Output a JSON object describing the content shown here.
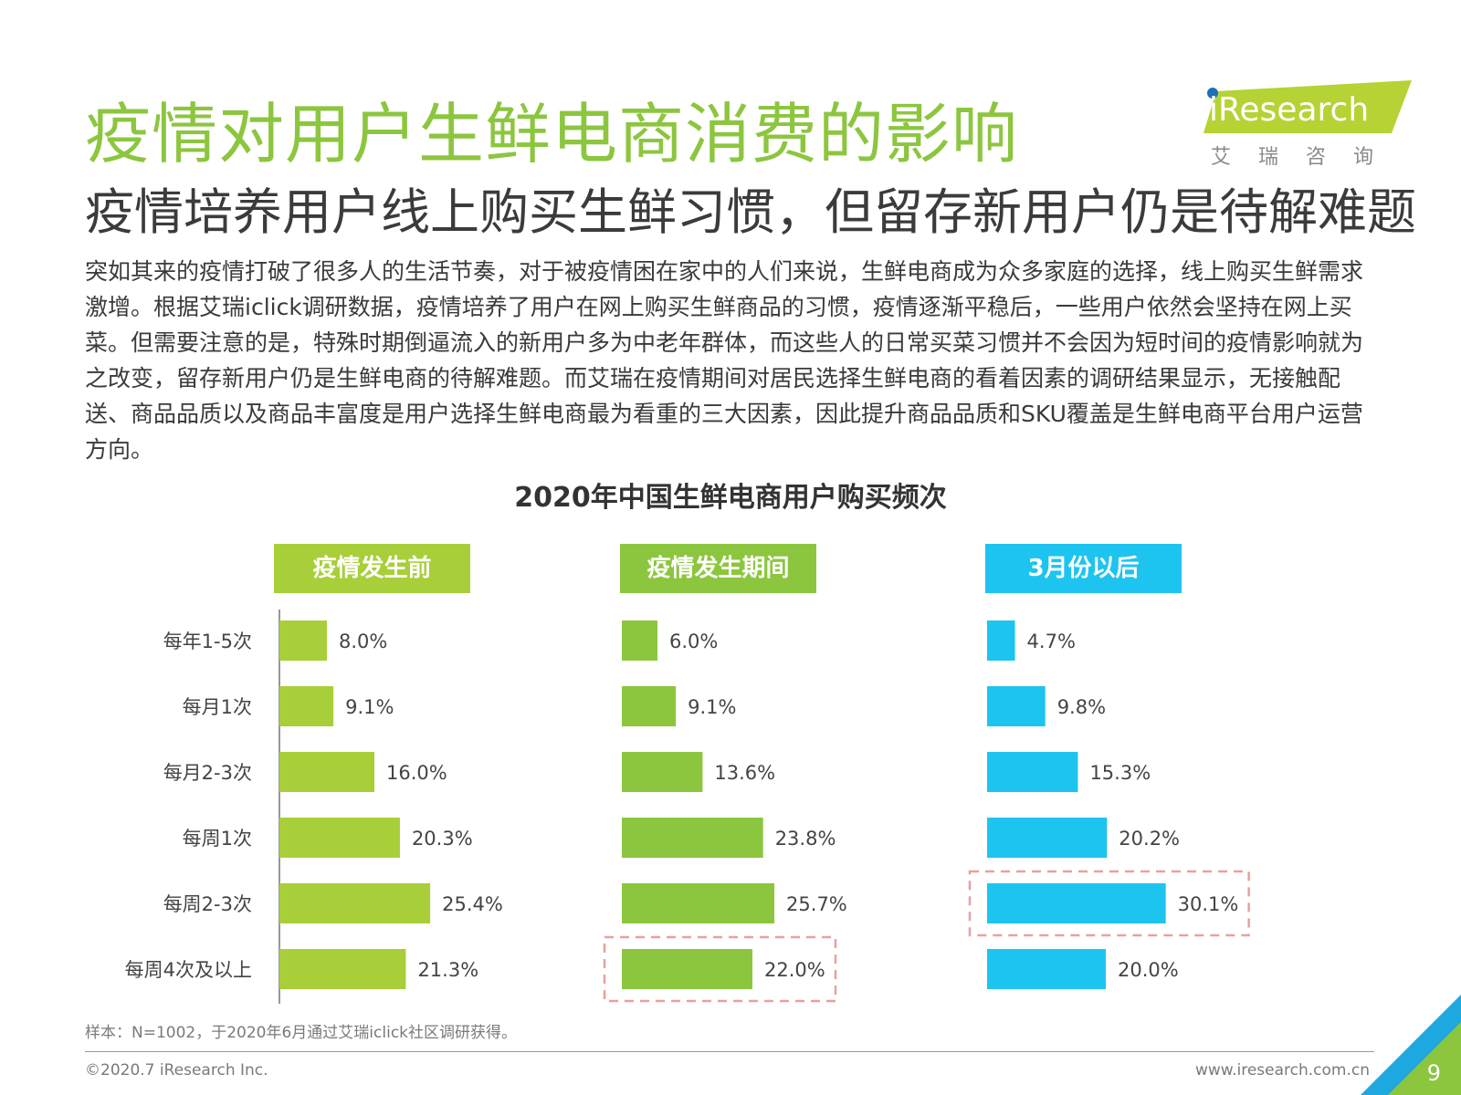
{
  "header": {
    "title": "疫情对用户生鲜电商消费的影响",
    "subtitle": "疫情培养用户线上购买生鲜习惯，但留存新用户仍是待解难题"
  },
  "logo": {
    "brand": "iResearch",
    "cn": "艾瑞咨询"
  },
  "body_text": "突如其来的疫情打破了很多人的生活节奏，对于被疫情困在家中的人们来说，生鲜电商成为众多家庭的选择，线上购买生鲜需求激增。根据艾瑞iclick调研数据，疫情培养了用户在网上购买生鲜商品的习惯，疫情逐渐平稳后，一些用户依然会坚持在网上买菜。但需要注意的是，特殊时期倒逼流入的新用户多为中老年群体，而这些人的日常买菜习惯并不会因为短时间的疫情影响就为之改变，留存新用户仍是生鲜电商的待解难题。而艾瑞在疫情期间对居民选择生鲜电商的看着因素的调研结果显示，无接触配送、商品品质以及商品丰富度是用户选择生鲜电商最为看重的三大因素，因此提升商品品质和SKU覆盖是生鲜电商平台用户运营方向。",
  "chart_data": {
    "type": "bar",
    "orientation": "horizontal",
    "title": "2020年中国生鲜电商用户购买频次",
    "categories": [
      "每年1-5次",
      "每月1次",
      "每月2-3次",
      "每周1次",
      "每周2-3次",
      "每周4次及以上"
    ],
    "series": [
      {
        "name": "疫情发生前",
        "color": "#a8cf39",
        "values": [
          8.0,
          9.1,
          16.0,
          20.3,
          25.4,
          21.3
        ],
        "labels": [
          "8.0%",
          "9.1%",
          "16.0%",
          "20.3%",
          "25.4%",
          "21.3%"
        ],
        "highlight_index": null
      },
      {
        "name": "疫情发生期间",
        "color": "#8cc63f",
        "values": [
          6.0,
          9.1,
          13.6,
          23.8,
          25.7,
          22.0
        ],
        "labels": [
          "6.0%",
          "9.1%",
          "13.6%",
          "23.8%",
          "25.7%",
          "22.0%"
        ],
        "highlight_index": 5
      },
      {
        "name": "3月份以后",
        "color": "#1ec4f0",
        "values": [
          4.7,
          9.8,
          15.3,
          20.2,
          30.1,
          20.0
        ],
        "labels": [
          "4.7%",
          "9.8%",
          "15.3%",
          "20.2%",
          "30.1%",
          "20.0%"
        ],
        "highlight_index": 4
      }
    ],
    "highlight_color": "#e8a0a0"
  },
  "note": "样本：N=1002，于2020年6月通过艾瑞iclick社区调研获得。",
  "footer": {
    "copyright": "©2020.7 iResearch Inc.",
    "website": "www.iresearch.com.cn",
    "page": "9"
  }
}
